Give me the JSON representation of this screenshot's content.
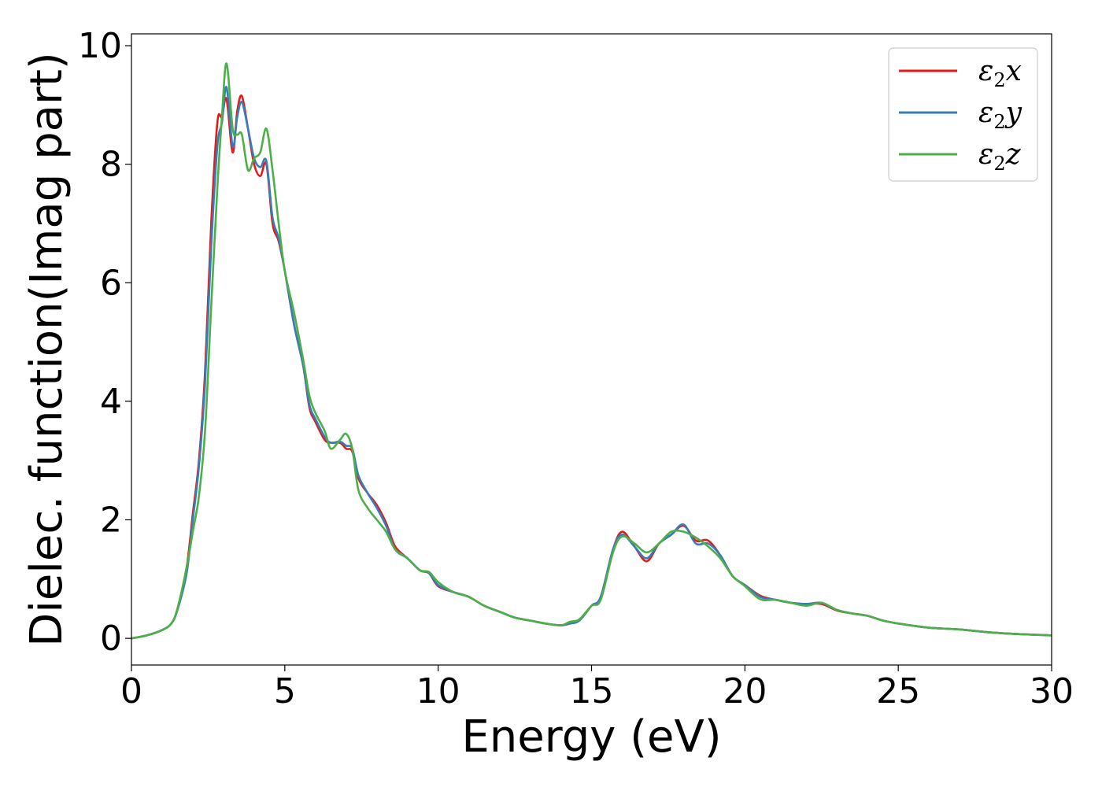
{
  "chart_data": {
    "type": "line",
    "xlabel": "Energy (eV)",
    "ylabel": "Dielec. function(Imag part)",
    "xlim": [
      0,
      30
    ],
    "ylim": [
      -0.45,
      10.2
    ],
    "xticks": [
      0,
      5,
      10,
      15,
      20,
      25,
      30
    ],
    "yticks": [
      0,
      2,
      4,
      6,
      8,
      10
    ],
    "grid": false,
    "legend_position": "top-right",
    "series": [
      {
        "name": "ε2x",
        "legend": {
          "base": "ε",
          "sub": "2",
          "var": "x"
        },
        "color": "#e41a1c",
        "x": [
          0,
          0.5,
          1.0,
          1.3,
          1.5,
          1.8,
          2.0,
          2.2,
          2.4,
          2.6,
          2.8,
          2.95,
          3.1,
          3.3,
          3.45,
          3.6,
          3.8,
          4.0,
          4.2,
          4.4,
          4.6,
          4.8,
          5.0,
          5.3,
          5.6,
          5.8,
          6.0,
          6.3,
          6.5,
          6.8,
          7.0,
          7.2,
          7.4,
          7.7,
          8.0,
          8.3,
          8.6,
          9.0,
          9.4,
          9.7,
          10.0,
          10.5,
          11.0,
          11.5,
          12.0,
          12.5,
          13.0,
          13.5,
          14.0,
          14.3,
          14.6,
          15.0,
          15.3,
          15.7,
          16.0,
          16.4,
          16.8,
          17.2,
          17.6,
          18.0,
          18.4,
          18.8,
          19.2,
          19.6,
          20.0,
          20.5,
          21.0,
          21.5,
          22.0,
          22.5,
          23.0,
          23.5,
          24.0,
          24.5,
          25.0,
          26.0,
          27.0,
          28.0,
          29.0,
          30.0
        ],
        "values": [
          0.0,
          0.05,
          0.14,
          0.25,
          0.5,
          1.2,
          2.1,
          3.0,
          4.5,
          7.0,
          8.7,
          8.8,
          9.1,
          8.2,
          8.9,
          9.15,
          8.6,
          8.0,
          7.8,
          8.0,
          7.0,
          6.7,
          6.2,
          5.3,
          4.6,
          3.9,
          3.65,
          3.35,
          3.3,
          3.3,
          3.2,
          3.15,
          2.7,
          2.45,
          2.25,
          1.95,
          1.55,
          1.35,
          1.15,
          1.1,
          0.88,
          0.78,
          0.7,
          0.55,
          0.45,
          0.35,
          0.3,
          0.25,
          0.22,
          0.25,
          0.3,
          0.55,
          0.7,
          1.5,
          1.8,
          1.55,
          1.3,
          1.6,
          1.75,
          1.9,
          1.65,
          1.65,
          1.4,
          1.05,
          0.9,
          0.72,
          0.65,
          0.6,
          0.58,
          0.58,
          0.47,
          0.42,
          0.38,
          0.3,
          0.25,
          0.18,
          0.15,
          0.1,
          0.07,
          0.05
        ]
      },
      {
        "name": "ε2y",
        "legend": {
          "base": "ε",
          "sub": "2",
          "var": "y"
        },
        "color": "#377eb8",
        "x": [
          0,
          0.5,
          1.0,
          1.3,
          1.5,
          1.8,
          2.0,
          2.2,
          2.4,
          2.6,
          2.8,
          2.95,
          3.1,
          3.3,
          3.45,
          3.6,
          3.8,
          4.0,
          4.2,
          4.4,
          4.6,
          4.8,
          5.0,
          5.3,
          5.6,
          5.8,
          6.0,
          6.3,
          6.5,
          6.8,
          7.0,
          7.2,
          7.4,
          7.7,
          8.0,
          8.3,
          8.6,
          9.0,
          9.4,
          9.7,
          10.0,
          10.5,
          11.0,
          11.5,
          12.0,
          12.5,
          13.0,
          13.5,
          14.0,
          14.3,
          14.6,
          15.0,
          15.3,
          15.7,
          16.0,
          16.4,
          16.8,
          17.2,
          17.6,
          18.0,
          18.4,
          18.8,
          19.2,
          19.6,
          20.0,
          20.5,
          21.0,
          21.5,
          22.0,
          22.5,
          23.0,
          23.5,
          24.0,
          24.5,
          25.0,
          26.0,
          27.0,
          28.0,
          29.0,
          30.0
        ],
        "values": [
          0.0,
          0.05,
          0.14,
          0.25,
          0.48,
          1.1,
          2.0,
          2.9,
          4.3,
          6.6,
          8.3,
          8.7,
          9.3,
          8.3,
          8.8,
          9.05,
          8.6,
          8.1,
          7.95,
          8.05,
          7.1,
          6.75,
          6.2,
          5.3,
          4.6,
          3.95,
          3.7,
          3.4,
          3.3,
          3.32,
          3.25,
          3.2,
          2.75,
          2.45,
          2.2,
          1.9,
          1.5,
          1.35,
          1.15,
          1.1,
          0.9,
          0.78,
          0.7,
          0.55,
          0.45,
          0.35,
          0.3,
          0.25,
          0.22,
          0.25,
          0.3,
          0.55,
          0.7,
          1.5,
          1.75,
          1.55,
          1.35,
          1.6,
          1.75,
          1.92,
          1.6,
          1.6,
          1.4,
          1.05,
          0.9,
          0.7,
          0.65,
          0.6,
          0.58,
          0.6,
          0.48,
          0.42,
          0.38,
          0.3,
          0.25,
          0.18,
          0.15,
          0.1,
          0.07,
          0.05
        ]
      },
      {
        "name": "ε2z",
        "legend": {
          "base": "ε",
          "sub": "2",
          "var": "z"
        },
        "color": "#4daf4a",
        "x": [
          0,
          0.5,
          1.0,
          1.3,
          1.5,
          1.8,
          2.0,
          2.2,
          2.4,
          2.6,
          2.8,
          2.95,
          3.1,
          3.3,
          3.45,
          3.6,
          3.8,
          4.0,
          4.2,
          4.4,
          4.6,
          4.8,
          5.0,
          5.3,
          5.6,
          5.8,
          6.0,
          6.3,
          6.5,
          6.8,
          7.0,
          7.2,
          7.4,
          7.7,
          8.0,
          8.3,
          8.6,
          9.0,
          9.4,
          9.7,
          10.0,
          10.5,
          11.0,
          11.5,
          12.0,
          12.5,
          13.0,
          13.5,
          14.0,
          14.3,
          14.6,
          15.0,
          15.3,
          15.7,
          16.0,
          16.4,
          16.8,
          17.2,
          17.6,
          18.0,
          18.4,
          18.8,
          19.2,
          19.6,
          20.0,
          20.5,
          21.0,
          21.5,
          22.0,
          22.5,
          23.0,
          23.5,
          24.0,
          24.5,
          25.0,
          26.0,
          27.0,
          28.0,
          29.0,
          30.0
        ],
        "values": [
          0.0,
          0.05,
          0.14,
          0.25,
          0.5,
          1.2,
          1.8,
          2.4,
          3.5,
          5.6,
          7.6,
          8.8,
          9.7,
          8.6,
          8.5,
          8.5,
          7.9,
          8.1,
          8.2,
          8.6,
          7.9,
          7.0,
          6.2,
          5.5,
          4.7,
          4.1,
          3.8,
          3.5,
          3.2,
          3.35,
          3.45,
          3.2,
          2.5,
          2.2,
          2.0,
          1.8,
          1.5,
          1.35,
          1.15,
          1.12,
          0.95,
          0.78,
          0.7,
          0.55,
          0.45,
          0.35,
          0.3,
          0.25,
          0.22,
          0.28,
          0.32,
          0.55,
          0.65,
          1.45,
          1.72,
          1.6,
          1.45,
          1.6,
          1.8,
          1.8,
          1.7,
          1.55,
          1.35,
          1.05,
          0.88,
          0.66,
          0.65,
          0.6,
          0.55,
          0.6,
          0.48,
          0.42,
          0.38,
          0.3,
          0.25,
          0.18,
          0.15,
          0.1,
          0.07,
          0.05
        ]
      }
    ]
  }
}
